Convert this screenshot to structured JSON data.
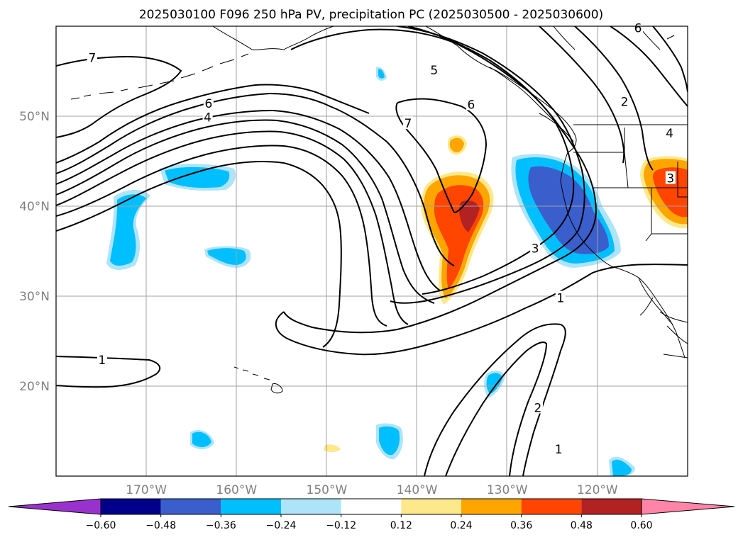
{
  "chart_data": {
    "type": "map-contour",
    "title": "2025030100 F096 250 hPa PV, precipitation PC (2025030500 - 2025030600)",
    "lon_range": [
      -180,
      -110
    ],
    "lat_range": [
      10,
      60
    ],
    "grid": true,
    "lon_ticks": [
      {
        "value": -170,
        "label": "170°W"
      },
      {
        "value": -160,
        "label": "160°W"
      },
      {
        "value": -150,
        "label": "150°W"
      },
      {
        "value": -140,
        "label": "140°W"
      },
      {
        "value": -130,
        "label": "130°W"
      },
      {
        "value": -120,
        "label": "120°W"
      }
    ],
    "lat_ticks": [
      {
        "value": 20,
        "label": "20°N"
      },
      {
        "value": 30,
        "label": "30°N"
      },
      {
        "value": 40,
        "label": "40°N"
      },
      {
        "value": 50,
        "label": "50°N"
      }
    ],
    "contour_labels": [
      {
        "text": "7",
        "lon": -176.0,
        "lat": 56.5
      },
      {
        "text": "6",
        "lon": -163.1,
        "lat": 51.4
      },
      {
        "text": "4",
        "lon": -163.2,
        "lat": 49.9
      },
      {
        "text": "5",
        "lon": -138.1,
        "lat": 55.1
      },
      {
        "text": "6",
        "lon": -134.0,
        "lat": 51.3
      },
      {
        "text": "7",
        "lon": -141.0,
        "lat": 49.2
      },
      {
        "text": "3",
        "lon": -126.9,
        "lat": 35.3
      },
      {
        "text": "1",
        "lon": -124.1,
        "lat": 29.8
      },
      {
        "text": "1",
        "lon": -174.9,
        "lat": 22.9
      },
      {
        "text": "2",
        "lon": -126.6,
        "lat": 17.6
      },
      {
        "text": "1",
        "lon": -124.3,
        "lat": 13.0
      },
      {
        "text": "2",
        "lon": -117.0,
        "lat": 51.6
      },
      {
        "text": "4",
        "lon": -112.0,
        "lat": 48.1
      },
      {
        "text": "3",
        "lon": -111.9,
        "lat": 43.1
      },
      {
        "text": "6",
        "lon": -115.5,
        "lat": 59.8
      }
    ],
    "colorbar": {
      "levels": [
        -0.6,
        -0.48,
        -0.36,
        -0.24,
        -0.12,
        0.12,
        0.24,
        0.36,
        0.48,
        0.6
      ],
      "tick_labels": [
        "−0.60",
        "−0.48",
        "−0.36",
        "−0.24",
        "−0.12",
        "0.12",
        "0.24",
        "0.36",
        "0.48",
        "0.60"
      ],
      "colors": [
        "#9932cc",
        "#00008b",
        "#3a5fcd",
        "#00bfff",
        "#aee4fa",
        "#ffffff",
        "#fde98c",
        "#ffa500",
        "#ff4500",
        "#b22222",
        "#ff85a8"
      ],
      "extend": "both"
    }
  }
}
